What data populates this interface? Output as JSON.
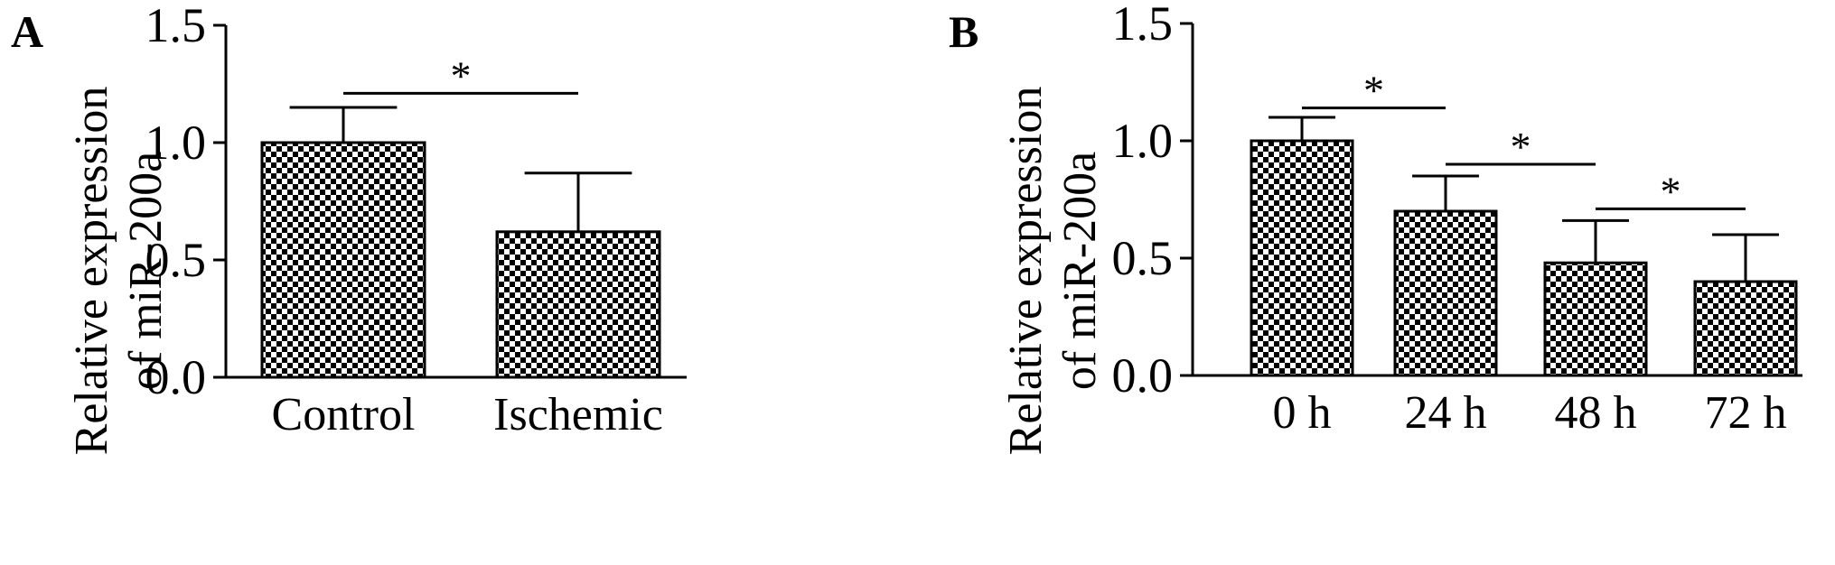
{
  "chart_data": [
    {
      "panel": "A",
      "type": "bar",
      "ylabel_line1": "Relative expression",
      "ylabel_line2": "of miR-200a",
      "ylim": [
        0,
        1.5
      ],
      "yticks": [
        "0.0",
        "0.5",
        "1.0",
        "1.5"
      ],
      "categories": [
        "Control",
        "Ischemic"
      ],
      "values": [
        1.0,
        0.62
      ],
      "errors": [
        0.15,
        0.25
      ],
      "significance": [
        {
          "from": "Control",
          "to": "Ischemic",
          "label": "*",
          "y": 1.21
        }
      ]
    },
    {
      "panel": "B",
      "type": "bar",
      "ylabel_line1": "Relative expression",
      "ylabel_line2": "of miR-200a",
      "ylim": [
        0,
        1.5
      ],
      "yticks": [
        "0.0",
        "0.5",
        "1.0",
        "1.5"
      ],
      "categories": [
        "0 h",
        "24 h",
        "48 h",
        "72 h"
      ],
      "values": [
        1.0,
        0.7,
        0.48,
        0.4
      ],
      "errors": [
        0.1,
        0.15,
        0.18,
        0.2
      ],
      "significance": [
        {
          "from": "0 h",
          "to": "24 h",
          "label": "*",
          "y": 1.14
        },
        {
          "from": "24 h",
          "to": "48 h",
          "label": "*",
          "y": 0.9
        },
        {
          "from": "48 h",
          "to": "72 h",
          "label": "*",
          "y": 0.71
        }
      ]
    }
  ],
  "colors": {
    "bar_fill_a": "#000000",
    "bar_fill_b": "#ffffff",
    "axis": "#000000"
  }
}
